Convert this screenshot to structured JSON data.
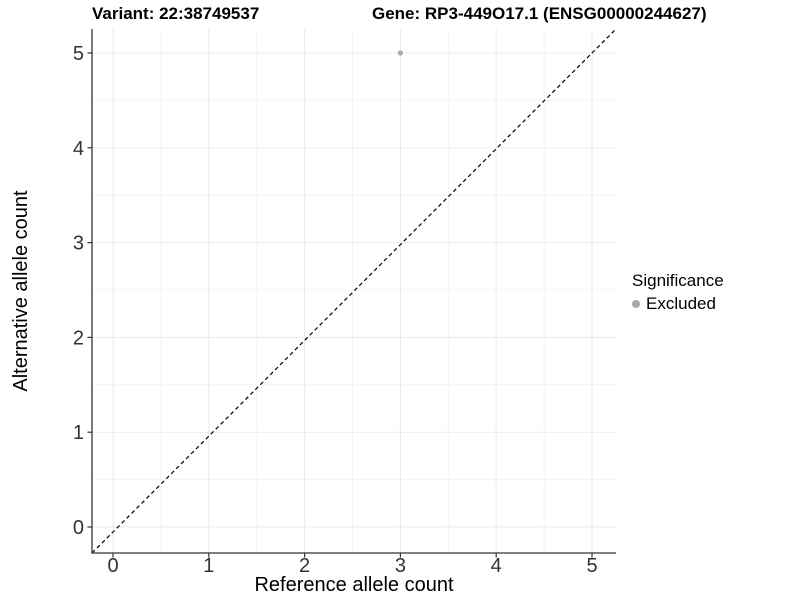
{
  "header": {
    "variant_title": "Variant: 22:38749537",
    "gene_title": "Gene: RP3-449O17.1 (ENSG00000244627)"
  },
  "legend": {
    "title": "Significance",
    "items": [
      {
        "label": "Excluded",
        "color": "#a9a9a9"
      }
    ]
  },
  "chart_data": {
    "type": "scatter",
    "title": "Variant: 22:38749537",
    "subtitle": "Gene: RP3-449O17.1 (ENSG00000244627)",
    "xlabel": "Reference allele count",
    "ylabel": "Alternative allele count",
    "xlim": [
      -0.25,
      5.25
    ],
    "ylim": [
      -0.25,
      5.25
    ],
    "x_ticks": [
      0,
      1,
      2,
      3,
      4,
      5
    ],
    "y_ticks": [
      0,
      1,
      2,
      3,
      4,
      5
    ],
    "grid": "major and minor gridlines on, white background",
    "legend_position": "right",
    "series": [
      {
        "name": "Excluded",
        "color": "#a9a9a9",
        "points": [
          {
            "x": 3,
            "y": 5
          }
        ]
      }
    ],
    "reference_line": {
      "type": "abline",
      "slope": 1,
      "intercept": 0,
      "style": "dashed",
      "color": "#000000"
    }
  },
  "colors": {
    "grid_major": "#ebebeb",
    "grid_minor": "#f4f4f4",
    "axis_line": "#333333",
    "tick_label": "#333333",
    "background": "#ffffff"
  }
}
